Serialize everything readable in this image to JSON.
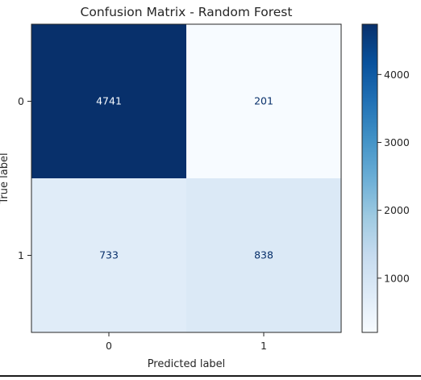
{
  "chart_data": {
    "type": "heatmap",
    "title": "Confusion Matrix - Random Forest",
    "xlabel": "Predicted label",
    "ylabel": "True label",
    "x_categories": [
      "0",
      "1"
    ],
    "y_categories": [
      "0",
      "1"
    ],
    "values": [
      [
        4741,
        201
      ],
      [
        733,
        838
      ]
    ],
    "colormap": "Blues",
    "colorbar": {
      "min": 201,
      "max": 4741,
      "ticks": [
        1000,
        2000,
        3000,
        4000
      ],
      "tick_labels": [
        "1000",
        "2000",
        "3000",
        "4000"
      ]
    },
    "colors": {
      "low": "#f7fbff",
      "high": "#08306b",
      "text_on_dark": "#f7fbff",
      "text_on_light": "#08306b"
    }
  }
}
